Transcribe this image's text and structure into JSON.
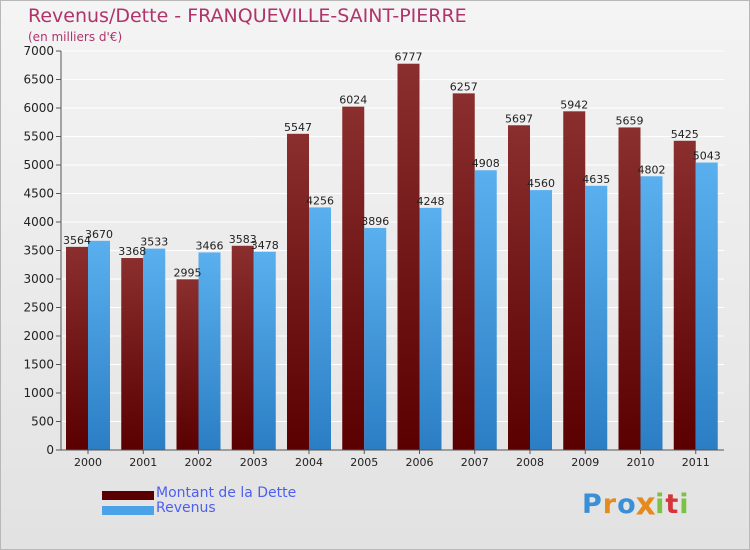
{
  "header": {
    "title": "Revenus/Dette - FRANQUEVILLE-SAINT-PIERRE",
    "subtitle": "(en milliers d'€)"
  },
  "colors": {
    "dette_top": "#8a2e2e",
    "dette_bottom": "#5a0000",
    "revenus_top": "#5ab0ee",
    "revenus_bottom": "#2b7ec4",
    "title": "#b0336b",
    "legend_text": "#4d5ff0",
    "grid": "#ffffff"
  },
  "chart_data": {
    "type": "bar",
    "title": "Revenus/Dette - FRANQUEVILLE-SAINT-PIERRE",
    "ylabel": "(en milliers d'€)",
    "xlabel": "",
    "ylim": [
      0,
      7000
    ],
    "ytick_step": 500,
    "grid": true,
    "legend_position": "bottom-left",
    "categories": [
      "2000",
      "2001",
      "2002",
      "2003",
      "2004",
      "2005",
      "2006",
      "2007",
      "2008",
      "2009",
      "2010",
      "2011"
    ],
    "series": [
      {
        "name": "Montant de la Dette",
        "values": [
          3564,
          3368,
          2995,
          3583,
          5547,
          6024,
          6777,
          6257,
          5697,
          5942,
          5659,
          5425
        ]
      },
      {
        "name": "Revenus",
        "values": [
          3670,
          3533,
          3466,
          3478,
          4256,
          3896,
          4248,
          4908,
          4560,
          4635,
          4802,
          5043
        ]
      }
    ]
  },
  "legend": {
    "dette_label": "Montant de la Dette",
    "revenus_label": "Revenus"
  },
  "logo": {
    "letters": [
      "P",
      "r",
      "o",
      "x",
      "i",
      "t",
      "i"
    ],
    "letter_colors": [
      "#3a8fd6",
      "#e58a1f",
      "#3a8fd6",
      "#e58a1f",
      "#7cc242",
      "#d6343c",
      "#7cc242"
    ]
  }
}
